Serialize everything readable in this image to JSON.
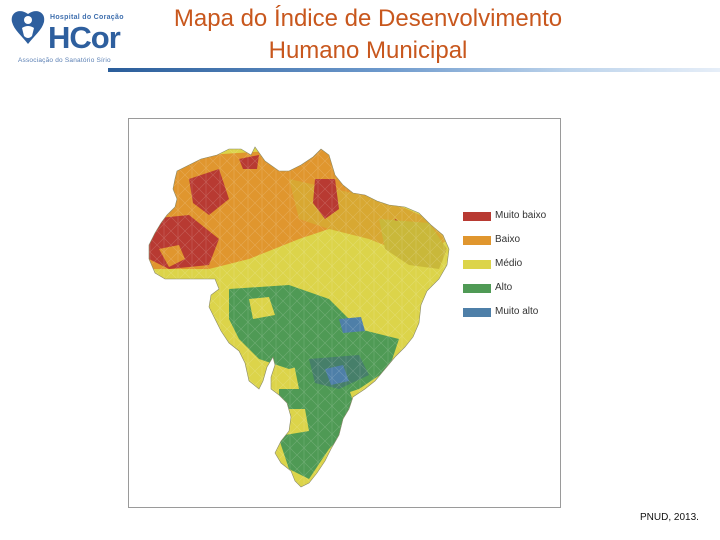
{
  "logo": {
    "top_text": "Hospital do Coração",
    "main_text": "HCor",
    "sub_text": "Associação do Sanatório Sírio"
  },
  "title": "Mapa do Índice de Desenvolvimento Humano Municipal",
  "legend": {
    "items": [
      {
        "label": "Muito baixo",
        "color": "#b83a32"
      },
      {
        "label": "Baixo",
        "color": "#e0962e"
      },
      {
        "label": "Médio",
        "color": "#dcd44a"
      },
      {
        "label": "Alto",
        "color": "#4f9a55"
      },
      {
        "label": "Muito alto",
        "color": "#4e7fa8"
      }
    ]
  },
  "source": "PNUD, 2013."
}
